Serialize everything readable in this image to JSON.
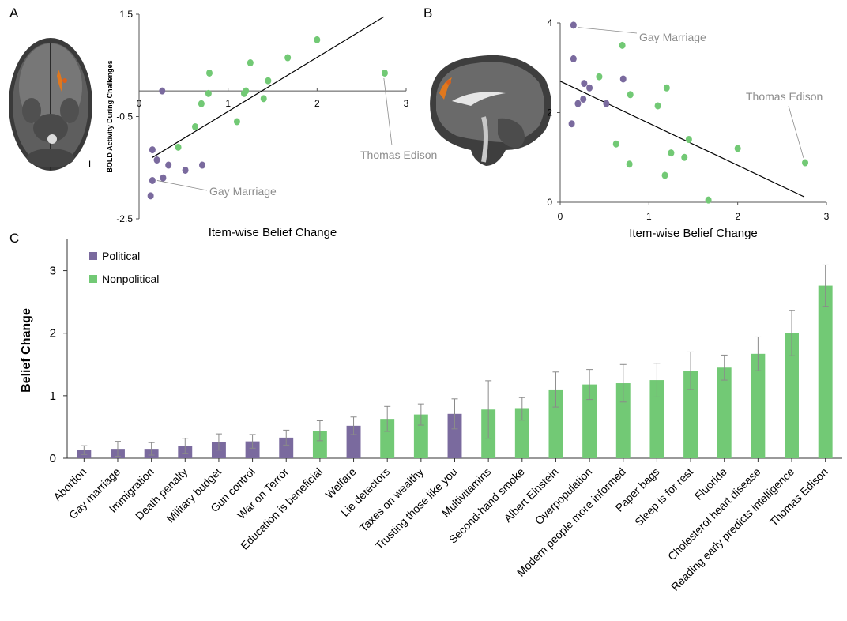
{
  "panels": {
    "a": "A",
    "b": "B",
    "c": "C"
  },
  "colors": {
    "political": "#7a6a9e",
    "nonpolitical": "#72c975",
    "errorbar": "#8a8a8a",
    "annotation": "#8c8c8c",
    "brain_highlight": "#e0781e"
  },
  "brain": {
    "orientation_label": "L"
  },
  "chart_data": [
    {
      "type": "scatter",
      "panel": "A",
      "xlabel": "Item-wise Belief Change",
      "ylabel": "BOLD Activity During Challenges",
      "xlim": [
        0,
        3
      ],
      "ylim": [
        -2.5,
        1.5
      ],
      "xticks": [
        "0",
        "1",
        "2",
        "3"
      ],
      "yticks": [
        "1.5",
        "-0.5",
        "-2.5"
      ],
      "grid": false,
      "trend_line": [
        [
          0.15,
          -1.3
        ],
        [
          2.75,
          1.45
        ]
      ],
      "annotations": [
        {
          "text": "Gay Marriage",
          "x": 0.15,
          "y": -1.75
        },
        {
          "text": "Thomas Edison",
          "x": 2.75,
          "y": -0.2
        }
      ],
      "series": [
        {
          "name": "Political",
          "points": [
            [
              0.13,
              -2.05
            ],
            [
              0.15,
              -1.75
            ],
            [
              0.15,
              -1.15
            ],
            [
              0.2,
              -1.35
            ],
            [
              0.26,
              0.0
            ],
            [
              0.27,
              -1.7
            ],
            [
              0.33,
              -1.45
            ],
            [
              0.52,
              -1.55
            ],
            [
              0.71,
              -1.45
            ]
          ]
        },
        {
          "name": "Nonpolitical",
          "points": [
            [
              0.44,
              -1.1
            ],
            [
              0.63,
              -0.7
            ],
            [
              0.7,
              -0.25
            ],
            [
              0.78,
              -0.05
            ],
            [
              0.79,
              0.35
            ],
            [
              1.1,
              -0.6
            ],
            [
              1.18,
              -0.05
            ],
            [
              1.2,
              0.0
            ],
            [
              1.25,
              0.55
            ],
            [
              1.4,
              -0.15
            ],
            [
              1.45,
              0.2
            ],
            [
              1.67,
              0.65
            ],
            [
              2.0,
              1.0
            ],
            [
              2.76,
              0.35
            ]
          ]
        }
      ]
    },
    {
      "type": "scatter",
      "panel": "B",
      "xlabel": "Item-wise Belief Change",
      "ylabel": "",
      "xlim": [
        0,
        3
      ],
      "ylim": [
        0,
        4
      ],
      "xticks": [
        "0",
        "1",
        "2",
        "3"
      ],
      "yticks": [
        "0",
        "2",
        "4"
      ],
      "grid": false,
      "trend_line": [
        [
          0.0,
          2.7
        ],
        [
          2.75,
          0.12
        ]
      ],
      "annotations": [
        {
          "text": "Gay Marriage",
          "x": 0.15,
          "y": 3.9
        },
        {
          "text": "Thomas Edison",
          "x": 2.76,
          "y": 0.88
        }
      ],
      "series": [
        {
          "name": "Political",
          "points": [
            [
              0.13,
              1.75
            ],
            [
              0.15,
              3.95
            ],
            [
              0.15,
              3.2
            ],
            [
              0.2,
              2.2
            ],
            [
              0.26,
              2.3
            ],
            [
              0.27,
              2.65
            ],
            [
              0.33,
              2.55
            ],
            [
              0.52,
              2.2
            ],
            [
              0.71,
              2.75
            ]
          ]
        },
        {
          "name": "Nonpolitical",
          "points": [
            [
              0.44,
              2.8
            ],
            [
              0.63,
              1.3
            ],
            [
              0.7,
              3.5
            ],
            [
              0.78,
              0.85
            ],
            [
              0.79,
              2.4
            ],
            [
              1.1,
              2.15
            ],
            [
              1.18,
              0.6
            ],
            [
              1.2,
              2.55
            ],
            [
              1.25,
              1.1
            ],
            [
              1.4,
              1.0
            ],
            [
              1.45,
              1.4
            ],
            [
              1.67,
              0.05
            ],
            [
              2.0,
              1.2
            ],
            [
              2.76,
              0.88
            ]
          ]
        }
      ]
    },
    {
      "type": "bar",
      "panel": "C",
      "title": "",
      "xlabel": "",
      "ylabel": "Belief Change",
      "ylim": [
        0,
        3.5
      ],
      "yticks": [
        "0",
        "1",
        "2",
        "3"
      ],
      "grid": false,
      "legend": {
        "placement": "top-left",
        "items": [
          "Political",
          "Nonpolitical"
        ]
      },
      "categories": [
        "Abortion",
        "Gay marriage",
        "Immigration",
        "Death penalty",
        "Military budget",
        "Gun control",
        "War on Terror",
        "Education is beneficial",
        "Welfare",
        "Lie detectors",
        "Taxes on wealthy",
        "Trusting those like you",
        "Multivitamins",
        "Second-hand smoke",
        "Albert Einstein",
        "Overpopulation",
        "Modern people more informed",
        "Paper bags",
        "Sleep is for rest",
        "Fluoride",
        "Cholesterol heart disease",
        "Reading early predicts intelligence",
        "Thomas Edison"
      ],
      "groups": [
        "Political",
        "Political",
        "Political",
        "Political",
        "Political",
        "Political",
        "Political",
        "Nonpolitical",
        "Political",
        "Nonpolitical",
        "Nonpolitical",
        "Political",
        "Nonpolitical",
        "Nonpolitical",
        "Nonpolitical",
        "Nonpolitical",
        "Nonpolitical",
        "Nonpolitical",
        "Nonpolitical",
        "Nonpolitical",
        "Nonpolitical",
        "Nonpolitical",
        "Nonpolitical"
      ],
      "values": [
        0.13,
        0.15,
        0.15,
        0.2,
        0.26,
        0.27,
        0.33,
        0.44,
        0.52,
        0.63,
        0.7,
        0.71,
        0.78,
        0.79,
        1.1,
        1.18,
        1.2,
        1.25,
        1.4,
        1.45,
        1.67,
        2.0,
        2.76
      ],
      "errors": [
        0.07,
        0.12,
        0.1,
        0.12,
        0.13,
        0.11,
        0.12,
        0.16,
        0.14,
        0.2,
        0.17,
        0.24,
        0.46,
        0.18,
        0.28,
        0.24,
        0.3,
        0.27,
        0.3,
        0.2,
        0.27,
        0.36,
        0.33
      ]
    }
  ]
}
